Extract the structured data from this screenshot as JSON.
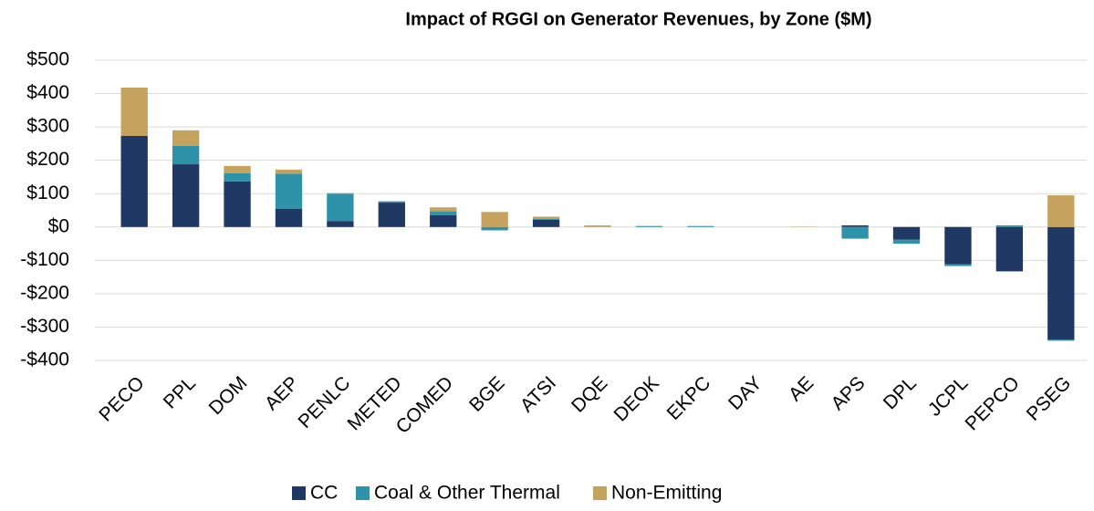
{
  "chart_data": {
    "type": "stacked_bar",
    "title": "Impact of RGGI on Generator Revenues, by Zone ($M)",
    "categories": [
      "PECO",
      "PPL",
      "DOM",
      "AEP",
      "PENLC",
      "METED",
      "COMED",
      "BGE",
      "ATSI",
      "DQE",
      "DEOK",
      "EKPC",
      "DAY",
      "AE",
      "APS",
      "DPL",
      "JCPL",
      "PEPCO",
      "PSEG"
    ],
    "series": [
      {
        "name": "CC",
        "color": "#1f3864",
        "values": [
          273,
          188,
          137,
          55,
          18,
          73,
          35,
          0,
          22,
          0,
          0,
          0,
          0,
          0,
          5,
          -38,
          -112,
          -133,
          -338
        ]
      },
      {
        "name": "Coal & Other Thermal",
        "color": "#2e93a8",
        "values": [
          0,
          55,
          24,
          105,
          82,
          4,
          12,
          -10,
          3,
          0,
          3,
          3,
          0,
          0,
          -35,
          -12,
          -5,
          5,
          -3
        ]
      },
      {
        "name": "Non-Emitting",
        "color": "#c5a35f",
        "values": [
          145,
          47,
          22,
          12,
          2,
          0,
          12,
          45,
          6,
          5,
          0,
          0,
          0,
          1,
          0,
          0,
          0,
          0,
          95
        ]
      }
    ],
    "ylim": [
      -400,
      500
    ],
    "yticks": [
      {
        "value": -400,
        "label": "-$400"
      },
      {
        "value": -300,
        "label": "-$300"
      },
      {
        "value": -200,
        "label": "-$200"
      },
      {
        "value": -100,
        "label": "-$100"
      },
      {
        "value": 0,
        "label": "$0"
      },
      {
        "value": 100,
        "label": "$100"
      },
      {
        "value": 200,
        "label": "$200"
      },
      {
        "value": 300,
        "label": "$300"
      },
      {
        "value": 400,
        "label": "$400"
      },
      {
        "value": 500,
        "label": "$500"
      }
    ],
    "grid": true,
    "legend": "bottom"
  }
}
